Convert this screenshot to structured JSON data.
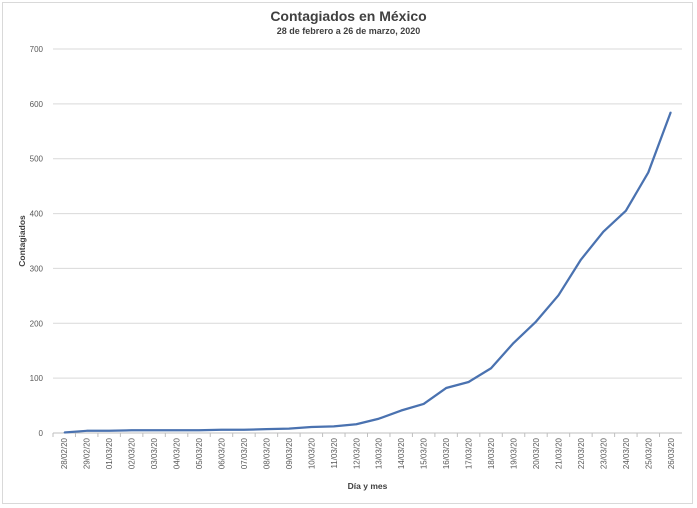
{
  "chart_data": {
    "type": "line",
    "title": "Contagiados en México",
    "subtitle": "28 de febrero a 26 de marzo, 2020",
    "xlabel": "Día y mes",
    "ylabel": "Contagiados",
    "ylim": [
      0,
      700
    ],
    "yticks": [
      0,
      100,
      200,
      300,
      400,
      500,
      600,
      700
    ],
    "grid": true,
    "legend": "none",
    "categories": [
      "28/02/20",
      "29/02/20",
      "01/03/20",
      "02/03/20",
      "03/03/20",
      "04/03/20",
      "05/03/20",
      "06/03/20",
      "07/03/20",
      "08/03/20",
      "09/03/20",
      "10/03/20",
      "11/03/20",
      "12/03/20",
      "13/03/20",
      "14/03/20",
      "15/03/20",
      "16/03/20",
      "17/03/20",
      "18/03/20",
      "19/03/20",
      "20/03/20",
      "21/03/20",
      "22/03/20",
      "23/03/20",
      "24/03/20",
      "25/03/20",
      "26/03/20"
    ],
    "series": [
      {
        "color": "#4a72b0",
        "values": [
          1,
          4,
          4,
          5,
          5,
          5,
          5,
          6,
          6,
          7,
          8,
          11,
          12,
          16,
          26,
          41,
          53,
          82,
          93,
          118,
          164,
          203,
          251,
          316,
          367,
          405,
          475,
          585
        ]
      }
    ]
  }
}
